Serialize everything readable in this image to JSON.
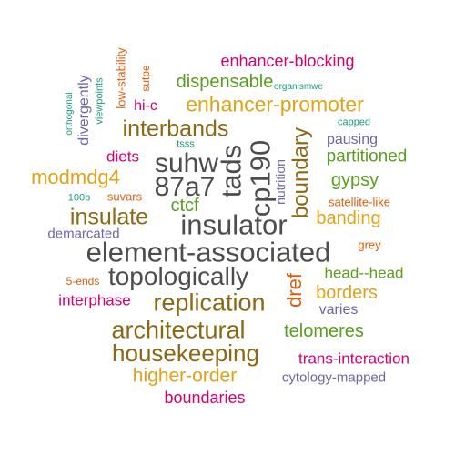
{
  "colors": {
    "gray": "#4d4d4d",
    "brown": "#8b6914",
    "gold": "#e0a21a",
    "green": "#5a9e1f",
    "purple": "#6e66a8",
    "magenta": "#d4006e",
    "teal": "#1a9b78",
    "orange": "#d95f0e"
  },
  "words": [
    "element-associated",
    "insulator",
    "topologically",
    "suhw",
    "87a7",
    "tads",
    "cp190",
    "replication",
    "architectural",
    "housekeeping",
    "enhancer-promoter",
    "interbands",
    "insulate",
    "boundary",
    "modmdg4",
    "higher-order",
    "dispensable",
    "enhancer-blocking",
    "ctcf",
    "dref",
    "borders",
    "banding",
    "gypsy",
    "partitioned",
    "telomeres",
    "head--head",
    "boundaries",
    "trans-interaction",
    "interphase",
    "diets",
    "hi-c",
    "divergently",
    "pausing",
    "cytology-mapped",
    "varies",
    "demarcated",
    "nutrition",
    "low-stability",
    "sutpe",
    "satellite-like",
    "suvars",
    "grey",
    "5-ends",
    "100b",
    "tsss",
    "capped",
    "organismwe",
    "orthogonal",
    "viewpoints"
  ]
}
